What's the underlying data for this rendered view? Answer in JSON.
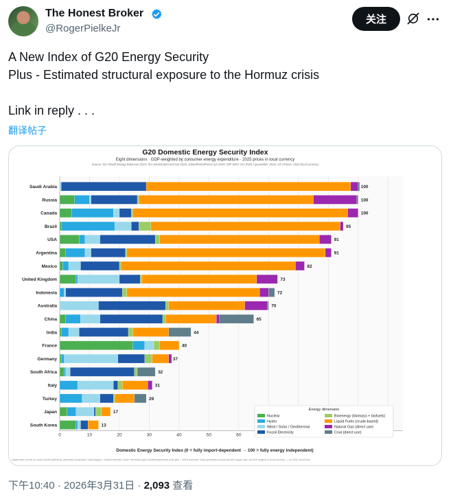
{
  "author": {
    "name": "The Honest Broker",
    "handle": "@RogerPielkeJr"
  },
  "follow_label": "关注",
  "tweet_lines": [
    "A New Index of G20 Energy Security",
    "Plus - Estimated structural exposure to the Hormuz crisis",
    "",
    "Link in reply . . ."
  ],
  "translate_label": "翻译帖子",
  "meta": {
    "time": "下午10:40 · 2026年3月31日 · ",
    "views": "2,093",
    "views_label": " 查看"
  },
  "colors": {
    "Nuclear": "#4caf50",
    "Hydro": "#29a9e1",
    "Wind / Solar / Geothermal": "#9ad8ec",
    "Fossil Electricity": "#1f58a8",
    "Bioenergy (biomass + biofuels)": "#9ccc65",
    "Liquid Fuels (crude-based)": "#ff9800",
    "Natural Gas (direct use)": "#9c27b0",
    "Coal (direct use)": "#607d8b"
  },
  "chart_data": {
    "type": "bar",
    "orientation": "horizontal",
    "stacked": true,
    "title": "G20 Domestic Energy Security Index",
    "subtitle": "Eight dimensions · GDP-weighted by consumer energy expenditure · 2025 prices in local currency",
    "source": "Source: IEA World Energy Balances 2023; IEA Electricity/Gas/Coal 2025; GlobalPetrolPrices Q4 2025; IMF WEO Oct 2025 | Quantities: 2022–23 | Prices: 2025 local currency",
    "footnote": "Liquid fuels scored on crude oil self-sufficiency (domestic production / total supply) + biofuel domestic share. Electricity split: nuclear/hydro/wind-solar-geo = 100% domestic; fossil generation scored by fuel supply ratio. All GDP weights in local currency — no USD conversion.",
    "xlabel": "Domestic Energy Security Index  (0 = fully import-dependent → 100 = fully energy independent)",
    "xlim": [
      0,
      115
    ],
    "xticks": [
      0,
      10,
      20,
      30,
      40,
      50,
      60,
      70,
      80,
      90,
      100,
      110
    ],
    "legend_title": "Energy dimension",
    "legend_position": "bottom-right",
    "series_names": [
      "Nuclear",
      "Hydro",
      "Wind / Solar / Geothermal",
      "Fossil Electricity",
      "Bioenergy (biomass + biofuels)",
      "Liquid Fuels (crude-based)",
      "Natural Gas (direct use)",
      "Coal (direct use)"
    ],
    "categories": [
      "Saudi Arabia",
      "Russia",
      "Canada",
      "Brazil",
      "USA",
      "Argentina",
      "Mexico",
      "United Kingdom",
      "Indonesia",
      "Australia",
      "China",
      "India",
      "France",
      "Germany",
      "South Africa",
      "Italy",
      "Turkey",
      "Japan",
      "South Korea"
    ],
    "totals": [
      100,
      100,
      100,
      95,
      91,
      91,
      82,
      73,
      72,
      70,
      65,
      44,
      40,
      37,
      32,
      31,
      29,
      17,
      13
    ],
    "segments": [
      [
        0,
        0,
        0.5,
        28.5,
        0,
        68.5,
        2.5,
        0.5
      ],
      [
        5,
        5,
        0.5,
        15.5,
        0.5,
        58.5,
        14.5,
        0.5
      ],
      [
        4,
        14,
        2,
        4,
        0.5,
        72,
        3.5,
        0
      ],
      [
        0.5,
        18,
        5.5,
        2.5,
        4,
        63.5,
        1,
        0
      ],
      [
        6.5,
        2,
        5,
        18.5,
        1.5,
        53.5,
        4,
        0
      ],
      [
        2,
        6.5,
        2,
        11.5,
        0.5,
        66.5,
        2,
        0
      ],
      [
        1,
        2,
        4,
        13,
        0.5,
        58.5,
        3,
        0
      ],
      [
        5.5,
        0.5,
        14,
        7,
        0.5,
        38.5,
        7,
        0
      ],
      [
        0,
        1.5,
        0.5,
        19,
        1.5,
        44.5,
        3,
        2
      ],
      [
        0,
        0,
        13,
        22.5,
        1,
        25.5,
        7.5,
        0.5
      ],
      [
        2,
        5,
        6.5,
        21,
        1,
        17,
        1,
        11.5
      ],
      [
        0.5,
        2.5,
        3.5,
        16.5,
        1.5,
        12,
        0,
        7.5
      ],
      [
        24.5,
        4,
        3,
        0,
        2,
        6.5,
        0,
        0
      ],
      [
        0.5,
        1,
        18,
        9,
        2.5,
        5.5,
        1,
        0
      ],
      [
        1.5,
        0.5,
        1.5,
        21.5,
        1,
        0,
        0,
        6
      ],
      [
        0,
        6,
        12,
        1.5,
        1.5,
        8.5,
        1.5,
        0
      ],
      [
        0,
        7.5,
        6,
        4.5,
        0.5,
        6.5,
        0,
        4
      ],
      [
        2.5,
        3,
        6,
        0.5,
        2,
        3,
        0,
        0
      ],
      [
        5.5,
        0.5,
        1,
        2.5,
        0,
        3.5,
        0,
        0
      ]
    ]
  }
}
